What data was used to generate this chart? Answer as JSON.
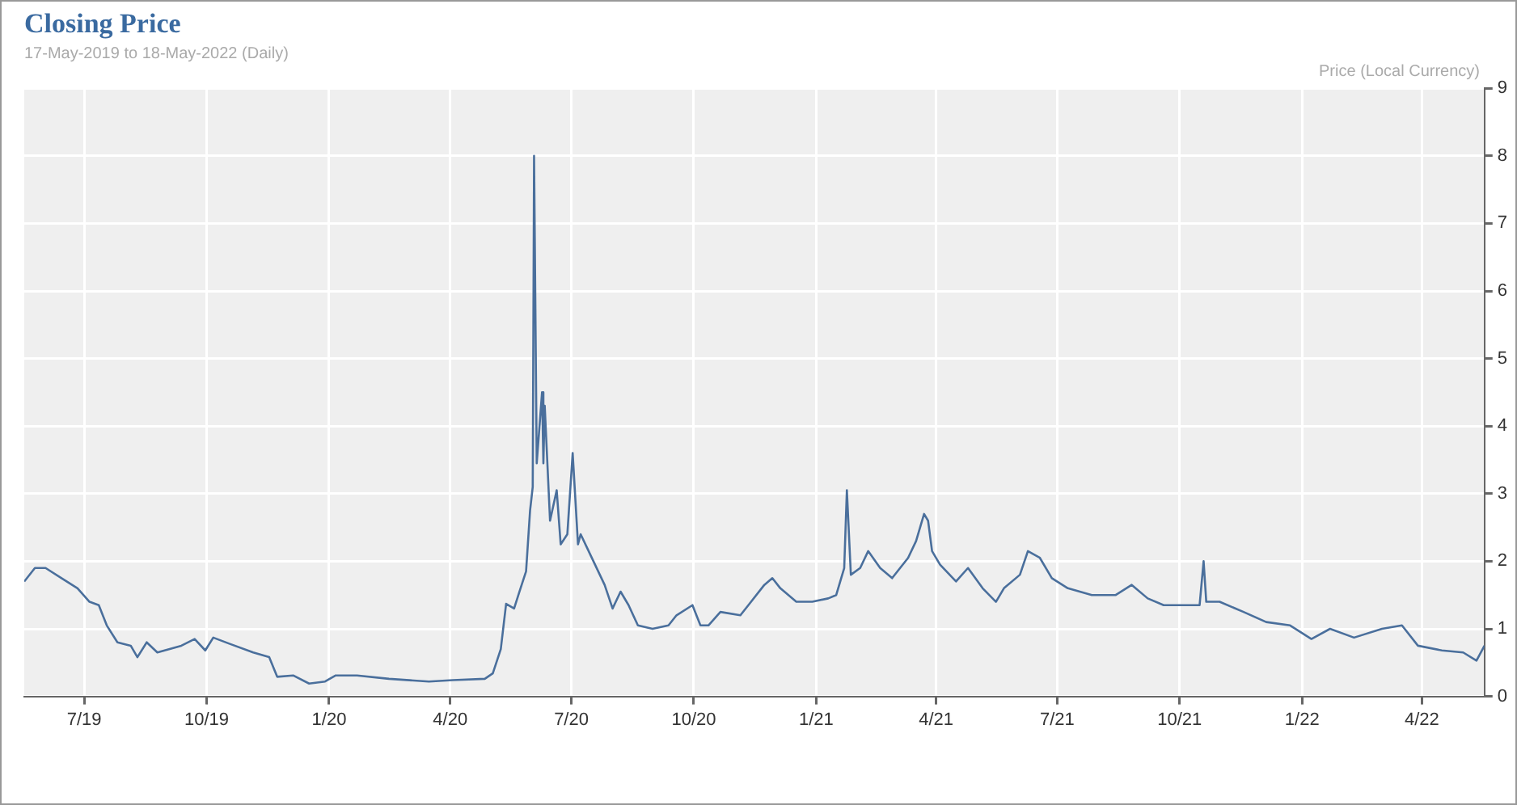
{
  "chart_data": {
    "type": "line",
    "title": "Closing Price",
    "subtitle": "17-May-2019 to 18-May-2022 (Daily)",
    "ylabel": "Price (Local Currency)",
    "x": [
      "2019-05-17",
      "2019-05-25",
      "2019-06-02",
      "2019-06-14",
      "2019-06-26",
      "2019-07-05",
      "2019-07-12",
      "2019-07-18",
      "2019-07-26",
      "2019-08-05",
      "2019-08-10",
      "2019-08-17",
      "2019-08-25",
      "2019-09-12",
      "2019-09-22",
      "2019-09-30",
      "2019-10-06",
      "2019-10-18",
      "2019-11-05",
      "2019-11-17",
      "2019-11-23",
      "2019-12-05",
      "2019-12-17",
      "2019-12-29",
      "2020-01-06",
      "2020-01-22",
      "2020-02-15",
      "2020-03-16",
      "2020-04-03",
      "2020-04-27",
      "2020-05-03",
      "2020-05-09",
      "2020-05-13",
      "2020-05-19",
      "2020-05-23",
      "2020-05-28",
      "2020-05-31",
      "2020-06-02",
      "2020-06-03",
      "2020-06-05",
      "2020-06-09",
      "2020-06-10",
      "2020-06-11",
      "2020-06-15",
      "2020-06-20",
      "2020-06-23",
      "2020-06-28",
      "2020-07-02",
      "2020-07-06",
      "2020-07-08",
      "2020-07-14",
      "2020-07-26",
      "2020-08-01",
      "2020-08-07",
      "2020-08-13",
      "2020-08-20",
      "2020-08-31",
      "2020-09-12",
      "2020-09-18",
      "2020-09-30",
      "2020-10-06",
      "2020-10-12",
      "2020-10-21",
      "2020-11-05",
      "2020-11-11",
      "2020-11-23",
      "2020-11-29",
      "2020-12-05",
      "2020-12-17",
      "2020-12-29",
      "2021-01-10",
      "2021-01-16",
      "2021-01-22",
      "2021-01-24",
      "2021-01-27",
      "2021-02-03",
      "2021-02-09",
      "2021-02-18",
      "2021-02-27",
      "2021-03-05",
      "2021-03-11",
      "2021-03-17",
      "2021-03-23",
      "2021-03-26",
      "2021-03-29",
      "2021-04-04",
      "2021-04-16",
      "2021-04-25",
      "2021-05-06",
      "2021-05-16",
      "2021-05-22",
      "2021-06-03",
      "2021-06-09",
      "2021-06-18",
      "2021-06-27",
      "2021-07-09",
      "2021-07-27",
      "2021-08-14",
      "2021-08-26",
      "2021-09-07",
      "2021-09-19",
      "2021-10-01",
      "2021-10-16",
      "2021-10-19",
      "2021-10-21",
      "2021-10-31",
      "2021-11-18",
      "2021-12-05",
      "2021-12-23",
      "2022-01-08",
      "2022-01-22",
      "2022-02-09",
      "2022-03-02",
      "2022-03-17",
      "2022-03-29",
      "2022-04-16",
      "2022-05-02",
      "2022-05-12",
      "2022-05-18"
    ],
    "series": [
      {
        "color": "#4a6f9c",
        "values": [
          1.7,
          1.9,
          1.9,
          1.75,
          1.6,
          1.4,
          1.35,
          1.05,
          0.8,
          0.75,
          0.58,
          0.8,
          0.65,
          0.75,
          0.85,
          0.68,
          0.87,
          0.78,
          0.65,
          0.58,
          0.29,
          0.31,
          0.19,
          0.22,
          0.31,
          0.31,
          0.26,
          0.22,
          0.24,
          0.26,
          0.34,
          0.7,
          1.37,
          1.3,
          1.55,
          1.85,
          2.75,
          3.1,
          8.0,
          3.45,
          4.5,
          3.45,
          4.3,
          2.6,
          3.05,
          2.25,
          2.4,
          3.6,
          2.25,
          2.4,
          2.15,
          1.65,
          1.3,
          1.55,
          1.35,
          1.05,
          1.0,
          1.05,
          1.2,
          1.35,
          1.05,
          1.05,
          1.25,
          1.2,
          1.35,
          1.65,
          1.75,
          1.6,
          1.4,
          1.4,
          1.45,
          1.5,
          1.9,
          3.05,
          1.8,
          1.9,
          2.15,
          1.9,
          1.75,
          1.9,
          2.05,
          2.3,
          2.7,
          2.6,
          2.15,
          1.95,
          1.7,
          1.9,
          1.6,
          1.4,
          1.6,
          1.8,
          2.15,
          2.05,
          1.75,
          1.6,
          1.5,
          1.5,
          1.65,
          1.45,
          1.35,
          1.35,
          1.35,
          2.0,
          1.4,
          1.4,
          1.25,
          1.1,
          1.05,
          0.85,
          1.0,
          0.87,
          1.0,
          1.05,
          0.75,
          0.68,
          0.65,
          0.53,
          0.75
        ]
      }
    ],
    "xlim": [
      "2019-05-17",
      "2022-05-18"
    ],
    "xticks": [
      {
        "value": "2019-07-01",
        "label": "7/19"
      },
      {
        "value": "2019-10-01",
        "label": "10/19"
      },
      {
        "value": "2020-01-01",
        "label": "1/20"
      },
      {
        "value": "2020-04-01",
        "label": "4/20"
      },
      {
        "value": "2020-07-01",
        "label": "7/20"
      },
      {
        "value": "2020-10-01",
        "label": "10/20"
      },
      {
        "value": "2021-01-01",
        "label": "1/21"
      },
      {
        "value": "2021-04-01",
        "label": "4/21"
      },
      {
        "value": "2021-07-01",
        "label": "7/21"
      },
      {
        "value": "2021-10-01",
        "label": "10/21"
      },
      {
        "value": "2022-01-01",
        "label": "1/22"
      },
      {
        "value": "2022-04-01",
        "label": "4/22"
      }
    ],
    "ylim": [
      0,
      9
    ],
    "yticks": [
      0,
      1,
      2,
      3,
      4,
      5,
      6,
      7,
      8,
      9
    ],
    "grid": true
  }
}
